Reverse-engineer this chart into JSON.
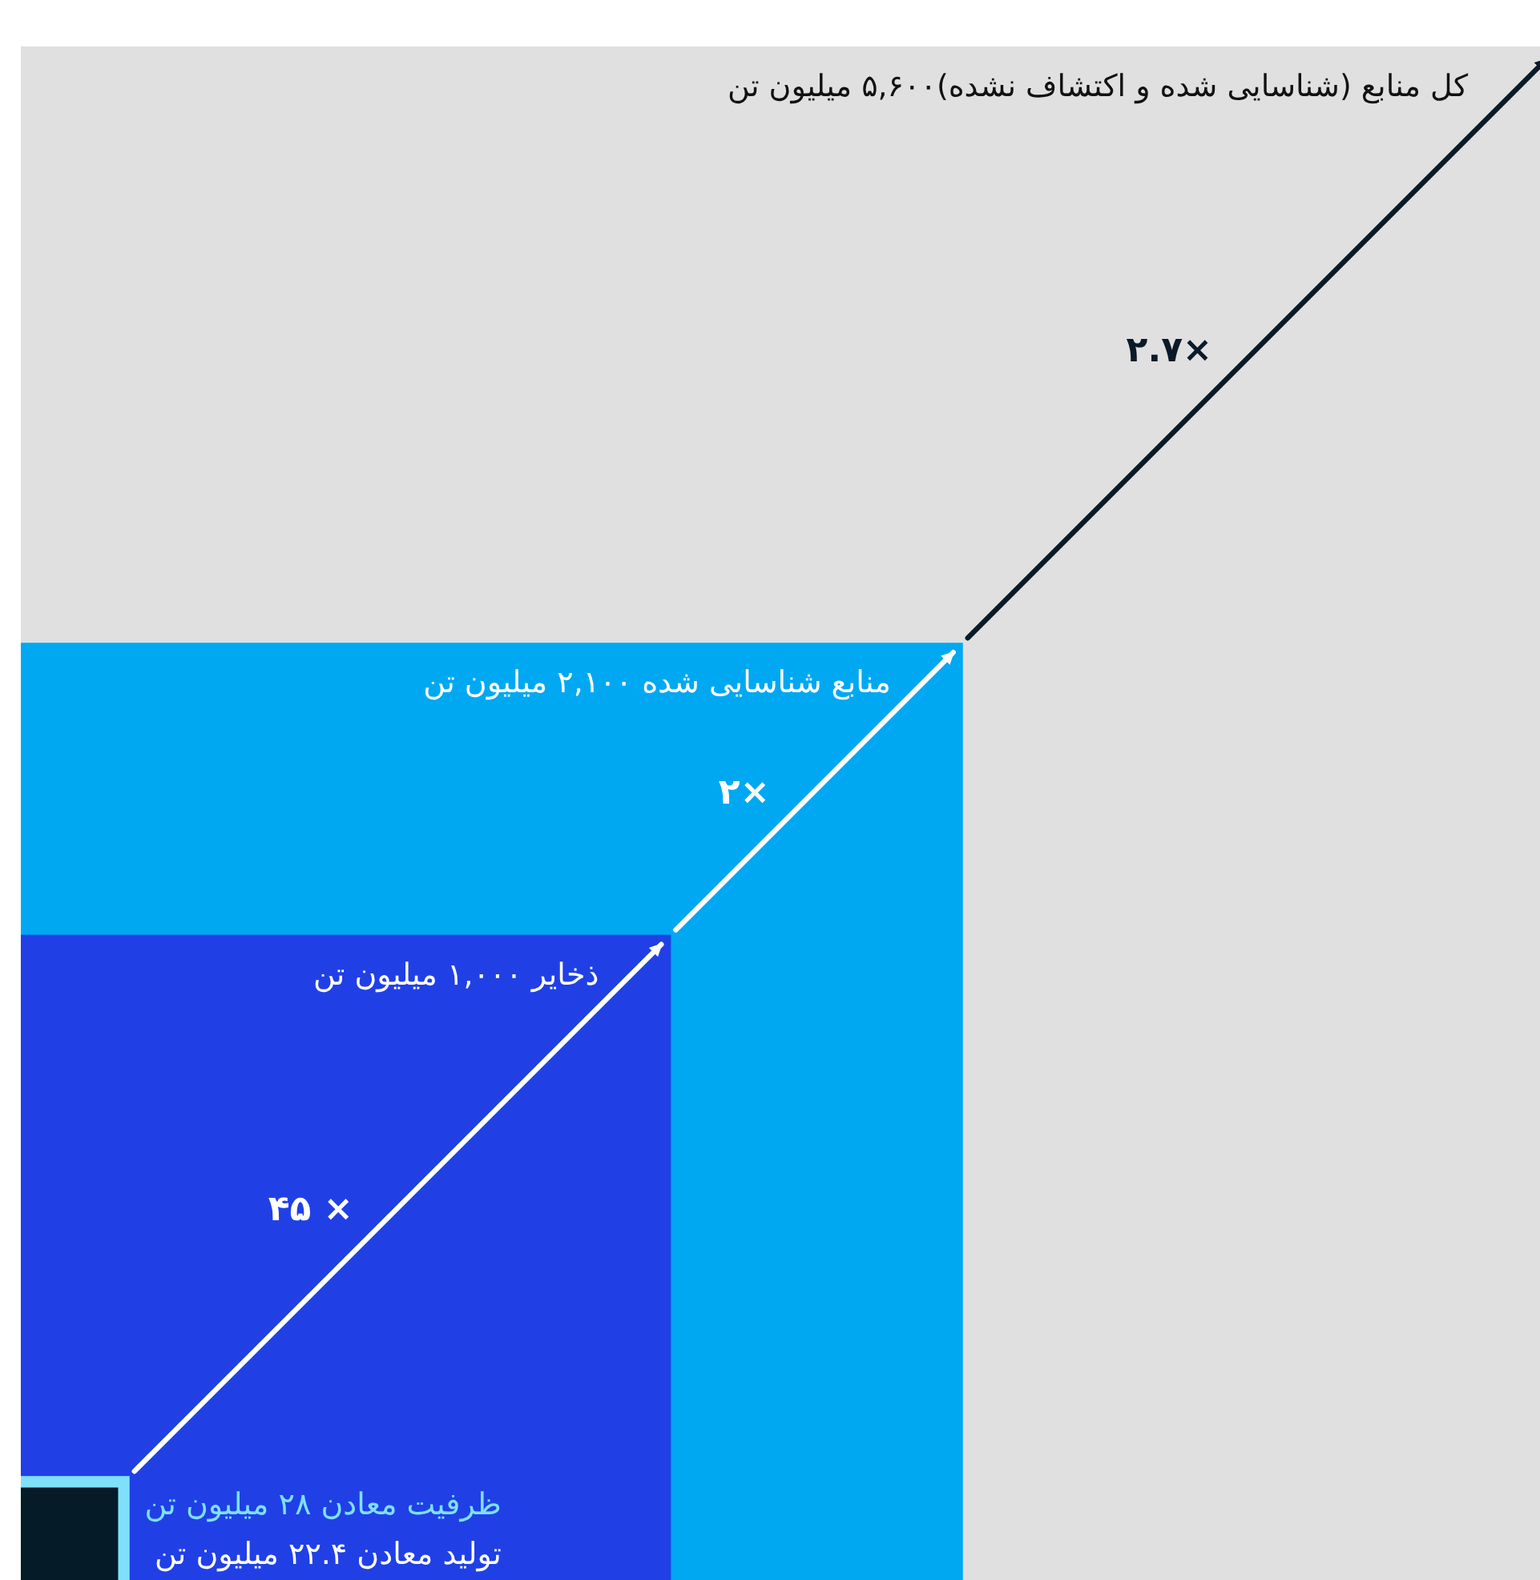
{
  "chart_data": {
    "type": "other",
    "values": [
      5600,
      2100,
      1000,
      28,
      22.4
    ],
    "colors": [
      "#e0e0e0",
      "#00a8f2",
      "#2040e6",
      "#7fe0fa",
      "#061b28"
    ],
    "value_labels": [
      "کل منابع (شناسایی شده و اکتشاف نشده)۵,۶۰۰ میلیون تن",
      "منابع شناسایی شده ۲,۱۰۰ میلیون تن",
      "ذخایر ۱,۰۰۰ میلیون تن",
      "ظرفیت معادن ۲۸ میلیون تن",
      "تولید معادن ۲۲.۴ میلیون تن"
    ],
    "annotations": [
      "×۲.۷",
      "×۲",
      "× ۴۵"
    ]
  }
}
